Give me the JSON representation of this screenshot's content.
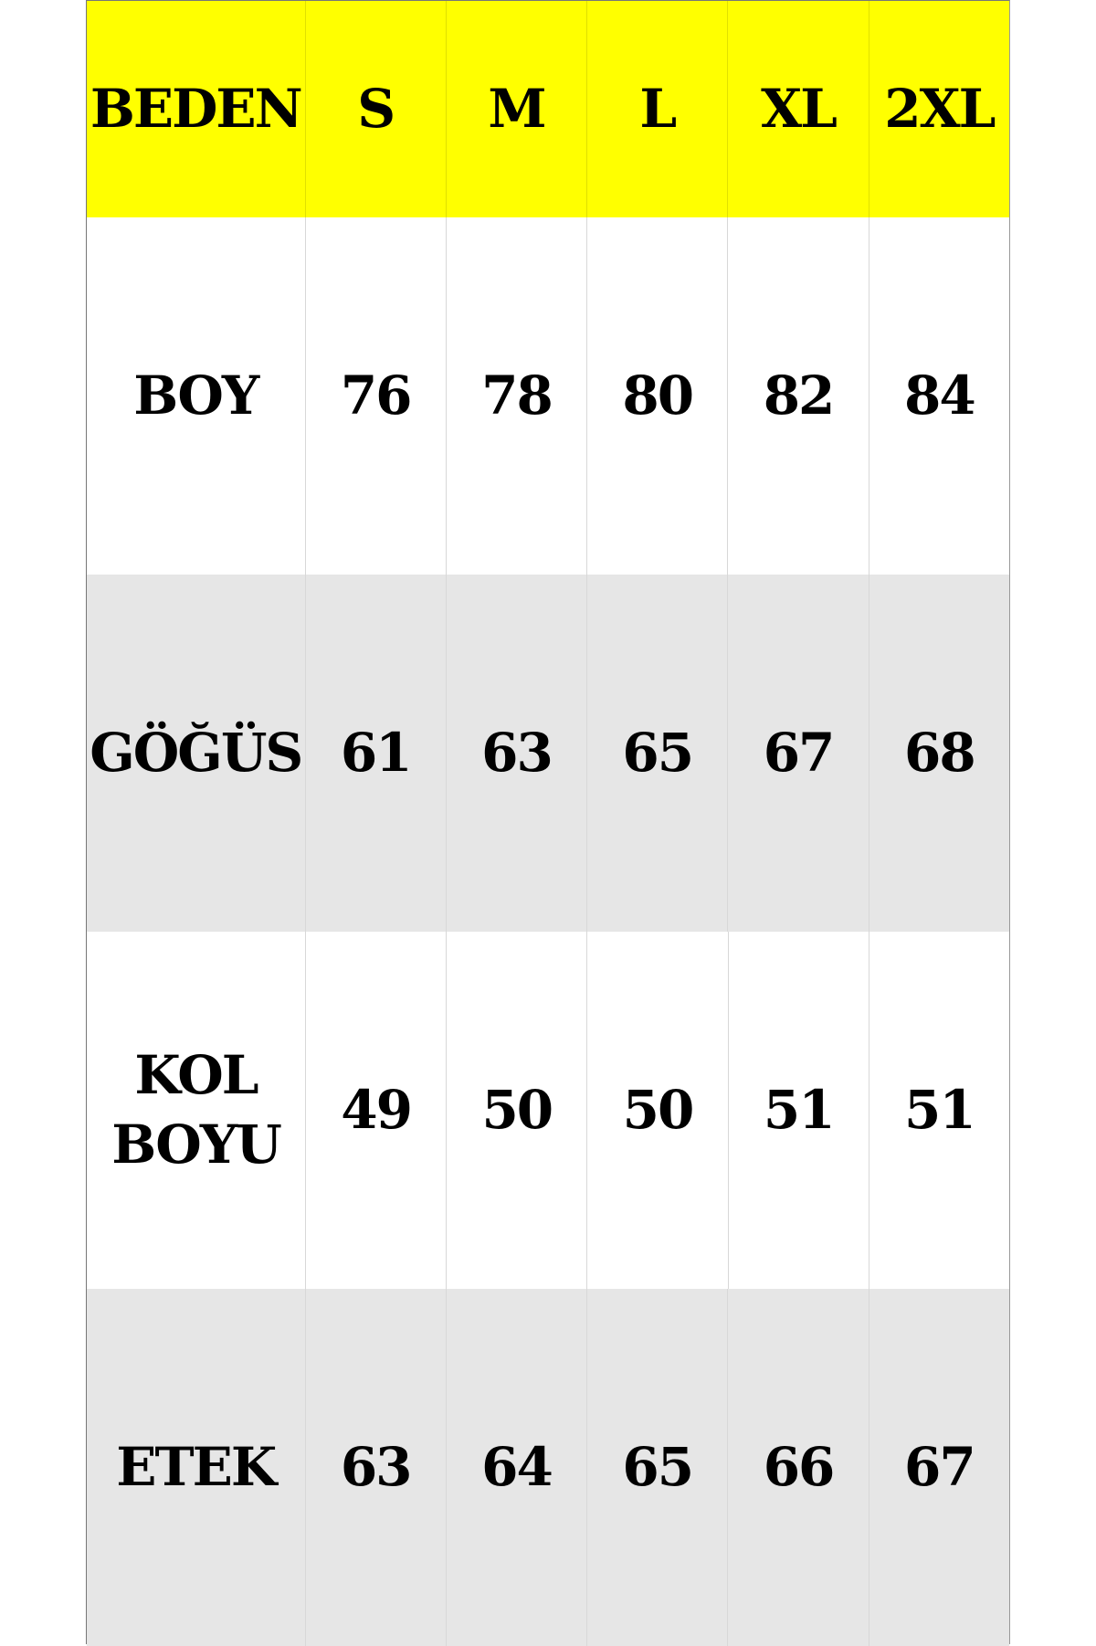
{
  "colors": {
    "header_bg": "#ffff00",
    "row_white": "#ffffff",
    "row_gray": "#e6e6e6",
    "text": "#000000"
  },
  "header": [
    "BEDEN",
    "S",
    "M",
    "L",
    "XL",
    "2XL"
  ],
  "rows": [
    {
      "label": "BOY",
      "values": [
        "76",
        "78",
        "80",
        "82",
        "84"
      ]
    },
    {
      "label": "GÖĞÜS",
      "values": [
        "61",
        "63",
        "65",
        "67",
        "68"
      ]
    },
    {
      "label": "KOL BOYU",
      "values": [
        "49",
        "50",
        "50",
        "51",
        "51"
      ]
    },
    {
      "label": "ETEK",
      "values": [
        "63",
        "64",
        "65",
        "66",
        "67"
      ]
    }
  ]
}
